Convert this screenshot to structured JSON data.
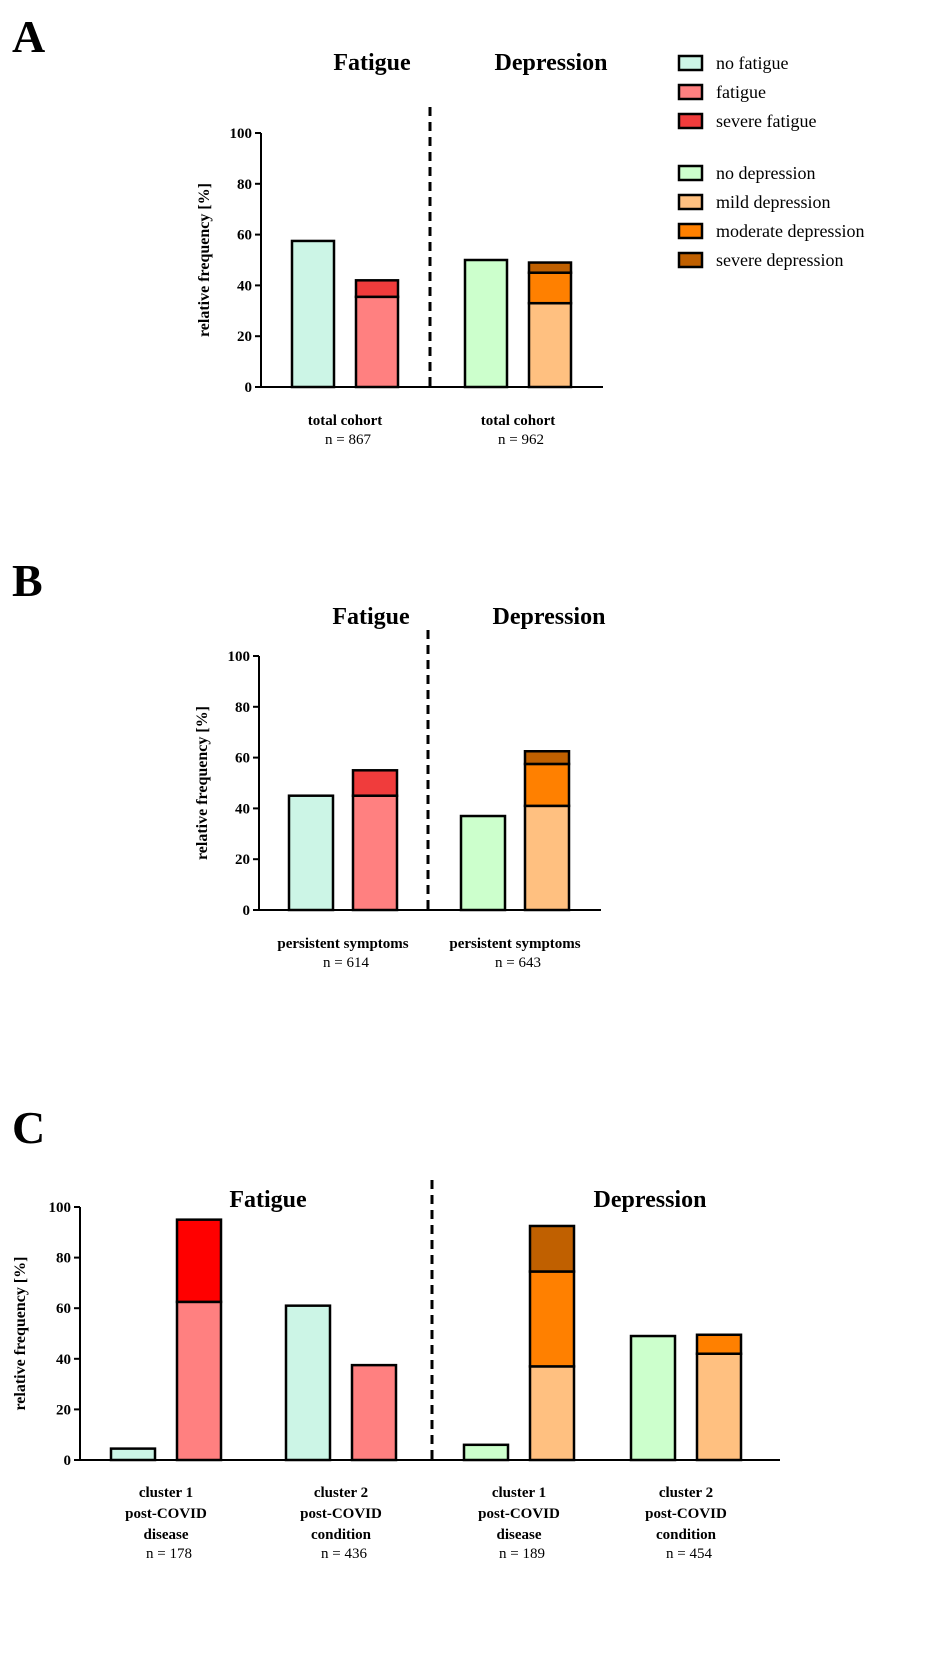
{
  "colors": {
    "no_fatigue": "#ccf5e6",
    "fatigue": "#ff8080",
    "severe_fatigue": "#f03c3c",
    "severe_fatigue_c": "#ff0000",
    "no_depression": "#ccffcc",
    "mild_depression": "#ffc080",
    "moderate_depression": "#ff8000",
    "severe_depression": "#c06000"
  },
  "legend": {
    "fatigue_items": [
      {
        "label": "no fatigue",
        "color": "#ccf5e6"
      },
      {
        "label": "fatigue",
        "color": "#ff8080"
      },
      {
        "label": "severe fatigue",
        "color": "#f03c3c"
      }
    ],
    "depression_items": [
      {
        "label": "no depression",
        "color": "#ccffcc"
      },
      {
        "label": "mild depression",
        "color": "#ffc080"
      },
      {
        "label": "moderate depression",
        "color": "#ff8000"
      },
      {
        "label": "severe depression",
        "color": "#c06000"
      }
    ]
  },
  "chart_data": [
    {
      "type": "bar",
      "stacked": true,
      "panel": "A",
      "headings": [
        "Fatigue",
        "Depression"
      ],
      "ylabel": "relative frequency [%]",
      "ylim": [
        0,
        100
      ],
      "yticks": [
        0,
        20,
        40,
        60,
        80,
        100
      ],
      "groups": [
        {
          "label_lines": [
            "total cohort"
          ],
          "n_label": "n = 867",
          "bars": [
            [
              {
                "value": 57.5,
                "color": "#ccf5e6"
              }
            ],
            [
              {
                "value": 35.5,
                "color": "#ff8080"
              },
              {
                "value": 6.5,
                "color": "#f03c3c"
              }
            ]
          ]
        },
        {
          "label_lines": [
            "total cohort"
          ],
          "n_label": "n = 962",
          "bars": [
            [
              {
                "value": 50,
                "color": "#ccffcc"
              }
            ],
            [
              {
                "value": 33,
                "color": "#ffc080"
              },
              {
                "value": 12,
                "color": "#ff8000"
              },
              {
                "value": 4,
                "color": "#c06000"
              }
            ]
          ]
        }
      ]
    },
    {
      "type": "bar",
      "stacked": true,
      "panel": "B",
      "headings": [
        "Fatigue",
        "Depression"
      ],
      "ylabel": "relative frequency [%]",
      "ylim": [
        0,
        100
      ],
      "yticks": [
        0,
        20,
        40,
        60,
        80,
        100
      ],
      "groups": [
        {
          "label_lines": [
            "persistent symptoms"
          ],
          "n_label": "n = 614",
          "bars": [
            [
              {
                "value": 45,
                "color": "#ccf5e6"
              }
            ],
            [
              {
                "value": 45,
                "color": "#ff8080"
              },
              {
                "value": 10,
                "color": "#f03c3c"
              }
            ]
          ]
        },
        {
          "label_lines": [
            "persistent symptoms"
          ],
          "n_label": "n = 643",
          "bars": [
            [
              {
                "value": 37,
                "color": "#ccffcc"
              }
            ],
            [
              {
                "value": 41,
                "color": "#ffc080"
              },
              {
                "value": 16.5,
                "color": "#ff8000"
              },
              {
                "value": 5,
                "color": "#c06000"
              }
            ]
          ]
        }
      ]
    },
    {
      "type": "bar",
      "stacked": true,
      "panel": "C",
      "headings": [
        "Fatigue",
        "Depression"
      ],
      "ylabel": "relative frequency [%]",
      "ylim": [
        0,
        100
      ],
      "yticks": [
        0,
        20,
        40,
        60,
        80,
        100
      ],
      "groups": [
        {
          "label_lines": [
            "cluster 1",
            "post-COVID",
            "disease"
          ],
          "n_label": "n = 178",
          "bars": [
            [
              {
                "value": 4.5,
                "color": "#ccf5e6"
              }
            ],
            [
              {
                "value": 62.5,
                "color": "#ff8080"
              },
              {
                "value": 32.5,
                "color": "#ff0000"
              }
            ]
          ]
        },
        {
          "label_lines": [
            "cluster 2",
            "post-COVID",
            "condition"
          ],
          "n_label": "n = 436",
          "bars": [
            [
              {
                "value": 61,
                "color": "#ccf5e6"
              }
            ],
            [
              {
                "value": 37.5,
                "color": "#ff8080"
              }
            ]
          ]
        },
        {
          "label_lines": [
            "cluster 1",
            "post-COVID",
            "disease"
          ],
          "n_label": "n = 189",
          "bars": [
            [
              {
                "value": 6,
                "color": "#ccffcc"
              }
            ],
            [
              {
                "value": 37,
                "color": "#ffc080"
              },
              {
                "value": 37.5,
                "color": "#ff8000"
              },
              {
                "value": 18,
                "color": "#c06000"
              }
            ]
          ]
        },
        {
          "label_lines": [
            "cluster 2",
            "post-COVID",
            "condition"
          ],
          "n_label": "n = 454",
          "bars": [
            [
              {
                "value": 49,
                "color": "#ccffcc"
              }
            ],
            [
              {
                "value": 42,
                "color": "#ffc080"
              },
              {
                "value": 7.5,
                "color": "#ff8000"
              }
            ]
          ]
        }
      ]
    }
  ]
}
